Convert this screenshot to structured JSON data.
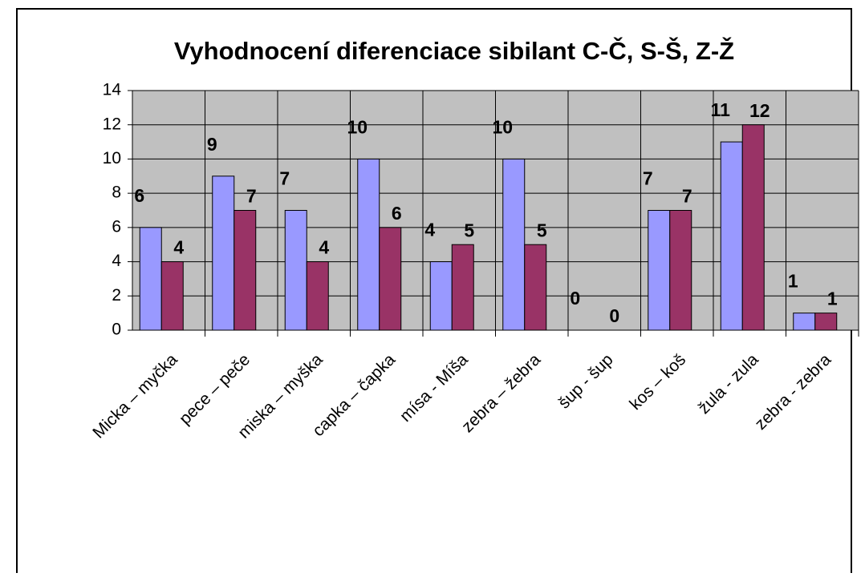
{
  "chart_data": {
    "type": "bar",
    "title": "Vyhodnocení diferenciace sibilant C-Č, S-Š, Z-Ž",
    "categories": [
      "Micka – myčka",
      "pece – peče",
      "miska – myška",
      "capka – čapka",
      "mísa - Míša",
      "zebra – žebra",
      "šup - šup",
      "kos – koš",
      "žula - zula",
      "zebra - zebra"
    ],
    "series": [
      {
        "color": "#9999ff",
        "values": [
          6,
          9,
          7,
          10,
          4,
          10,
          0,
          7,
          11,
          1
        ]
      },
      {
        "color": "#993366",
        "values": [
          4,
          7,
          4,
          6,
          5,
          5,
          0,
          7,
          12,
          1
        ]
      }
    ],
    "ylim": [
      0,
      14
    ],
    "yticks": [
      0,
      2,
      4,
      6,
      8,
      10,
      12,
      14
    ],
    "grid": true,
    "plot_background": "#c0c0c0"
  }
}
